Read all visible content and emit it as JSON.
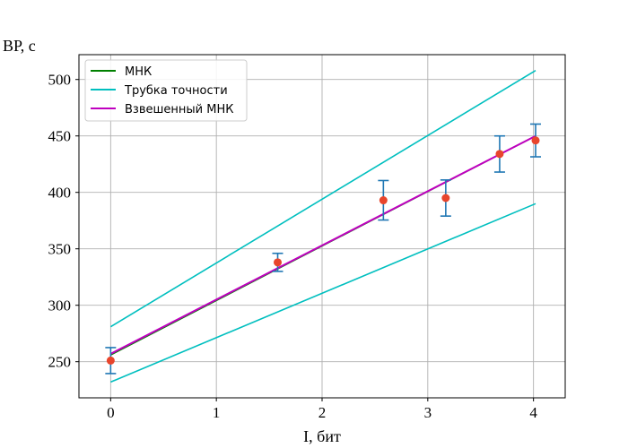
{
  "chart_data": {
    "type": "line",
    "title": "",
    "xlabel": "I, бит",
    "ylabel": "ВР, с",
    "xlim": [
      -0.3,
      4.3
    ],
    "ylim": [
      218,
      522
    ],
    "xticks": [
      0,
      1,
      2,
      3,
      4
    ],
    "yticks": [
      250,
      300,
      350,
      400,
      450,
      500
    ],
    "grid": true,
    "legend_position": "top-left",
    "colors": {
      "ols": "#008000",
      "band": "#00bfbf",
      "wls": "#bf00bf",
      "points": "#e8452c",
      "errorbars": "#1f77b4",
      "grid": "#b0b0b0"
    },
    "series": [
      {
        "name": "МНК",
        "x": [
          0,
          4.02
        ],
        "y": [
          256,
          450
        ]
      },
      {
        "name": "Трубка точности",
        "x": [
          0,
          4.02
        ],
        "y": [
          281,
          508
        ]
      },
      {
        "x": [
          0,
          4.02
        ],
        "y": [
          232,
          390
        ]
      },
      {
        "name": "Взвешенный МНК",
        "x": [
          0,
          4.02
        ],
        "y": [
          257,
          450
        ]
      }
    ],
    "points": [
      {
        "x": 0,
        "y": 251,
        "err": 11.5
      },
      {
        "x": 1.58,
        "y": 338,
        "err": 8
      },
      {
        "x": 2.58,
        "y": 393,
        "err": 17.5
      },
      {
        "x": 3.17,
        "y": 395,
        "err": 16
      },
      {
        "x": 3.68,
        "y": 434,
        "err": 16
      },
      {
        "x": 4.02,
        "y": 446,
        "err": 14.5
      }
    ]
  }
}
